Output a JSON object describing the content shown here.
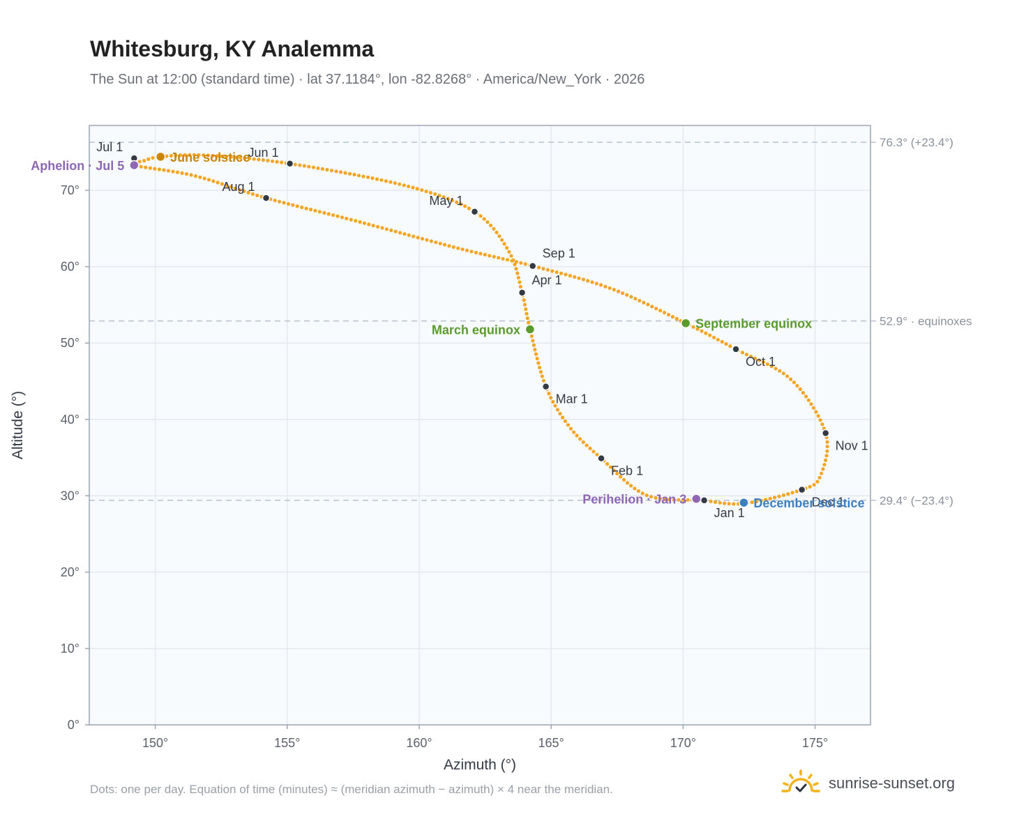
{
  "title": "Whitesburg, KY Analemma",
  "subtitle": "The Sun at 12:00 (standard time) · lat 37.1184°, lon -82.8268° · America/New_York · 2026",
  "footnote": "Dots: one per day. Equation of time (minutes) ≈ (meridian azimuth − azimuth) × 4 near the meridian.",
  "brand": {
    "name": "sunrise-sunset.org",
    "icon": "sunrise-logo-icon"
  },
  "colors": {
    "curve": "#f5a524",
    "month_marker": "#333a44",
    "solstice_june": "#c8860a",
    "solstice_december": "#3d7fc1",
    "equinox": "#5a9a2e",
    "apsis": "#8e67b5",
    "reference_line": "#b7c2cf",
    "plot_bg": "#f8fbfd",
    "grid": "#e4e9ee",
    "axis_frame": "#9aa5b4"
  },
  "chart_data": {
    "type": "scatter",
    "xlabel": "Azimuth (°)",
    "ylabel": "Altitude (°)",
    "xlim": [
      147.5,
      177.1
    ],
    "ylim": [
      0,
      78.5
    ],
    "x_ticks": [
      150,
      155,
      160,
      165,
      170,
      175
    ],
    "x_tick_labels": [
      "150°",
      "155°",
      "160°",
      "165°",
      "170°",
      "175°"
    ],
    "y_ticks": [
      0,
      10,
      20,
      30,
      40,
      50,
      60,
      70
    ],
    "y_tick_labels": [
      "0°",
      "10°",
      "20°",
      "30°",
      "40°",
      "50°",
      "60°",
      "70°"
    ],
    "grid": true,
    "curve_control_points": [
      [
        170.7,
        29.4
      ],
      [
        168.6,
        30.1
      ],
      [
        166.9,
        34.9
      ],
      [
        165.7,
        39.0
      ],
      [
        164.8,
        44.3
      ],
      [
        164.2,
        51.8
      ],
      [
        163.9,
        56.6
      ],
      [
        163.4,
        62.0
      ],
      [
        162.1,
        67.2
      ],
      [
        159.5,
        70.6
      ],
      [
        155.1,
        73.5
      ],
      [
        151.9,
        74.6
      ],
      [
        150.2,
        74.4
      ],
      [
        149.6,
        73.9
      ],
      [
        149.2,
        73.3
      ],
      [
        151.5,
        71.9
      ],
      [
        154.2,
        69.0
      ],
      [
        157.6,
        66.0
      ],
      [
        161.5,
        62.4
      ],
      [
        164.3,
        60.1
      ],
      [
        167.3,
        57.1
      ],
      [
        170.1,
        52.6
      ],
      [
        172.0,
        49.2
      ],
      [
        174.1,
        45.2
      ],
      [
        175.4,
        38.2
      ],
      [
        175.2,
        32.6
      ],
      [
        174.5,
        30.8
      ],
      [
        172.3,
        29.0
      ],
      [
        170.7,
        29.4
      ]
    ],
    "month_markers": [
      {
        "label": "Jan 1",
        "x": 170.8,
        "y": 29.4,
        "label_pos": "below-right"
      },
      {
        "label": "Feb 1",
        "x": 166.9,
        "y": 34.9,
        "label_pos": "below-right"
      },
      {
        "label": "Mar 1",
        "x": 164.8,
        "y": 44.3,
        "label_pos": "below-right"
      },
      {
        "label": "Apr 1",
        "x": 163.9,
        "y": 56.6,
        "label_pos": "above-right"
      },
      {
        "label": "May 1",
        "x": 162.1,
        "y": 67.2,
        "label_pos": "above-left"
      },
      {
        "label": "Jun 1",
        "x": 155.1,
        "y": 73.5,
        "label_pos": "above-left"
      },
      {
        "label": "Jul 1",
        "x": 149.2,
        "y": 74.2,
        "label_pos": "above-left"
      },
      {
        "label": "Aug 1",
        "x": 154.2,
        "y": 69.0,
        "label_pos": "above-left"
      },
      {
        "label": "Sep 1",
        "x": 164.3,
        "y": 60.1,
        "label_pos": "above-right"
      },
      {
        "label": "Oct 1",
        "x": 172.0,
        "y": 49.2,
        "label_pos": "below-right"
      },
      {
        "label": "Nov 1",
        "x": 175.4,
        "y": 38.2,
        "label_pos": "below-right"
      },
      {
        "label": "Dec 1",
        "x": 174.5,
        "y": 30.8,
        "label_pos": "below-right"
      }
    ],
    "special_points": [
      {
        "label": "June solstice",
        "x": 150.2,
        "y": 74.4,
        "color": "#c8860a",
        "label_side": "right"
      },
      {
        "label": "Aphelion · Jul 5",
        "x": 149.2,
        "y": 73.3,
        "color": "#8e67b5",
        "label_side": "left"
      },
      {
        "label": "March equinox",
        "x": 164.2,
        "y": 51.8,
        "color": "#5a9a2e",
        "label_side": "left"
      },
      {
        "label": "September equinox",
        "x": 170.1,
        "y": 52.6,
        "color": "#5a9a2e",
        "label_side": "right"
      },
      {
        "label": "Perihelion · Jan 3",
        "x": 170.5,
        "y": 29.6,
        "color": "#8e67b5",
        "label_side": "left"
      },
      {
        "label": "December solstice",
        "x": 172.3,
        "y": 29.1,
        "color": "#3d7fc1",
        "label_side": "right"
      }
    ],
    "reference_lines": [
      {
        "y": 76.3,
        "label": "76.3° (+23.4°)"
      },
      {
        "y": 52.9,
        "label": "52.9° · equinoxes"
      },
      {
        "y": 29.4,
        "label": "29.4° (−23.4°)"
      }
    ]
  }
}
